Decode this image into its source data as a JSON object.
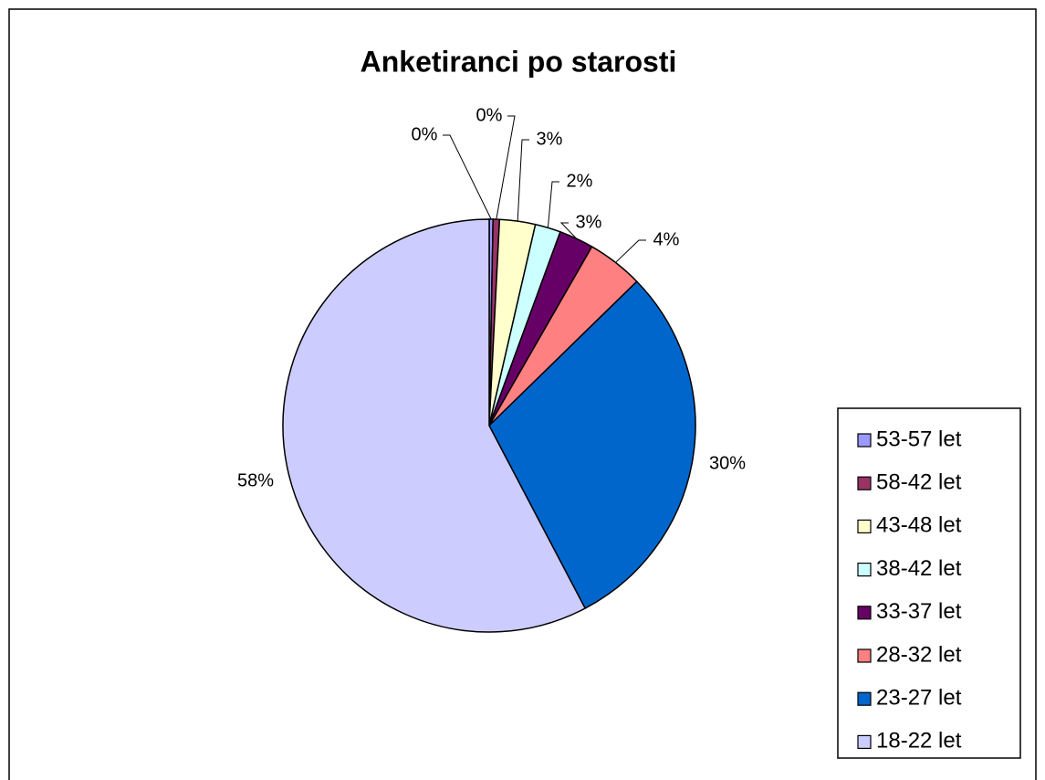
{
  "chart_data": {
    "type": "pie",
    "title": "Anketiranci po starosti",
    "categories": [
      "53-57 let",
      "58-42 let",
      "43-48 let",
      "38-42 let",
      "33-37 let",
      "28-32 let",
      "23-27 let",
      "18-22 let"
    ],
    "values": [
      0.3,
      0.5,
      2.8,
      2,
      2.7,
      4.4,
      29.6,
      57.7
    ],
    "value_labels": [
      "0%",
      "0%",
      "3%",
      "2%",
      "3%",
      "4%",
      "30%",
      "58%"
    ],
    "colors": [
      "#9999ff",
      "#993366",
      "#ffffcc",
      "#ccffff",
      "#660066",
      "#ff8080",
      "#0066cc",
      "#ccccff"
    ],
    "legend": "right"
  }
}
